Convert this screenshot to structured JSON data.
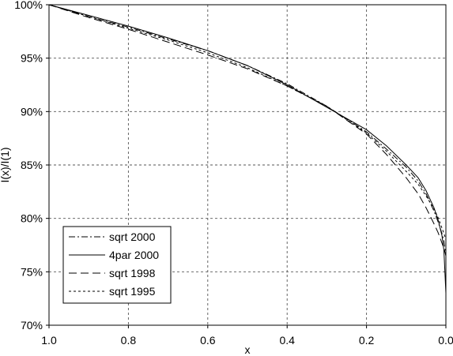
{
  "chart_data": {
    "type": "line",
    "title": "",
    "xlabel": "x",
    "ylabel": "I(x)/I(1)",
    "xlim": [
      1.0,
      0.0
    ],
    "ylim": [
      0.7,
      1.0
    ],
    "x_reversed": true,
    "x_ticks": [
      1.0,
      0.8,
      0.6,
      0.4,
      0.2,
      0.0
    ],
    "x_tick_labels": [
      "1.0",
      "0.8",
      "0.6",
      "0.4",
      "0.2",
      "0.0"
    ],
    "y_ticks": [
      0.7,
      0.75,
      0.8,
      0.85,
      0.9,
      0.95,
      1.0
    ],
    "y_tick_labels": [
      "70%",
      "75%",
      "80%",
      "85%",
      "90%",
      "95%",
      "100%"
    ],
    "grid": true,
    "legend_position": "bottom-left",
    "series": [
      {
        "name": "sqrt 2000",
        "dash": "dashdot",
        "x": [
          1.0,
          0.9,
          0.8,
          0.7,
          0.6,
          0.5,
          0.4,
          0.3,
          0.2,
          0.15,
          0.1,
          0.07,
          0.05,
          0.03,
          0.02,
          0.01,
          0.005,
          0.0
        ],
        "y": [
          1.0,
          0.989,
          0.979,
          0.968,
          0.957,
          0.943,
          0.926,
          0.905,
          0.881,
          0.865,
          0.848,
          0.835,
          0.823,
          0.807,
          0.797,
          0.786,
          0.779,
          0.765
        ]
      },
      {
        "name": "4par 2000",
        "dash": "solid",
        "x": [
          1.0,
          0.9,
          0.8,
          0.7,
          0.6,
          0.5,
          0.4,
          0.3,
          0.2,
          0.15,
          0.1,
          0.07,
          0.05,
          0.03,
          0.02,
          0.01,
          0.005,
          0.0
        ],
        "y": [
          1.0,
          0.99,
          0.98,
          0.969,
          0.957,
          0.943,
          0.925,
          0.904,
          0.883,
          0.868,
          0.85,
          0.838,
          0.826,
          0.81,
          0.799,
          0.784,
          0.77,
          0.73
        ]
      },
      {
        "name": "sqrt 1998",
        "dash": "longdash",
        "x": [
          1.0,
          0.9,
          0.8,
          0.7,
          0.6,
          0.5,
          0.4,
          0.3,
          0.2,
          0.15,
          0.1,
          0.07,
          0.05,
          0.03,
          0.02,
          0.01,
          0.005,
          0.0
        ],
        "y": [
          1.0,
          0.988,
          0.977,
          0.965,
          0.953,
          0.94,
          0.924,
          0.905,
          0.879,
          0.86,
          0.838,
          0.823,
          0.81,
          0.795,
          0.787,
          0.777,
          0.772,
          0.765
        ]
      },
      {
        "name": "sqrt 1995",
        "dash": "shortdash",
        "x": [
          1.0,
          0.9,
          0.8,
          0.7,
          0.6,
          0.5,
          0.4,
          0.3,
          0.2,
          0.15,
          0.1,
          0.07,
          0.05,
          0.03,
          0.02,
          0.01,
          0.005,
          0.0
        ],
        "y": [
          1.0,
          0.989,
          0.978,
          0.967,
          0.955,
          0.941,
          0.924,
          0.905,
          0.88,
          0.863,
          0.844,
          0.832,
          0.821,
          0.809,
          0.801,
          0.791,
          0.786,
          0.78
        ]
      }
    ]
  }
}
